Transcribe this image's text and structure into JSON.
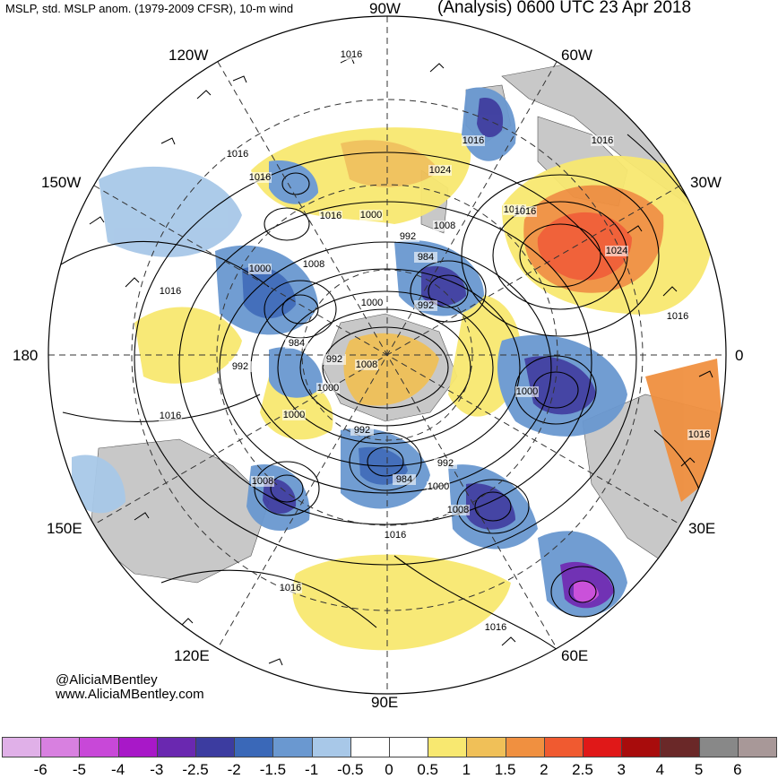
{
  "header": {
    "left_title": "MSLP, std. MSLP anom. (1979-2009 CFSR), 10-m wind",
    "right_title": "(Analysis) 0600 UTC 23 Apr 2018"
  },
  "longitude_labels": {
    "n90w": "90W",
    "n120w": "120W",
    "n60w": "60W",
    "n150w": "150W",
    "n30w": "30W",
    "n180": "180",
    "n0": "0",
    "n150e": "150E",
    "n30e": "30E",
    "n120e": "120E",
    "n60e": "60E",
    "n90e": "90E"
  },
  "credits": {
    "handle": "@AliciaMBentley",
    "website": "www.AliciaMBentley.com"
  },
  "contour_labels": [
    {
      "text": "1016"
    },
    {
      "text": "1016"
    },
    {
      "text": "1016"
    },
    {
      "text": "1016"
    },
    {
      "text": "1016"
    },
    {
      "text": "1016"
    },
    {
      "text": "1024"
    },
    {
      "text": "1016"
    },
    {
      "text": "1016"
    },
    {
      "text": "1000"
    },
    {
      "text": "1016"
    },
    {
      "text": "1008"
    },
    {
      "text": "992"
    },
    {
      "text": "1008"
    },
    {
      "text": "1024"
    },
    {
      "text": "1000"
    },
    {
      "text": "984"
    },
    {
      "text": "1016"
    },
    {
      "text": "1000"
    },
    {
      "text": "992"
    },
    {
      "text": "1016"
    },
    {
      "text": "984"
    },
    {
      "text": "992"
    },
    {
      "text": "992"
    },
    {
      "text": "1008"
    },
    {
      "text": "1000"
    },
    {
      "text": "1000"
    },
    {
      "text": "1016"
    },
    {
      "text": "1000"
    },
    {
      "text": "1016"
    },
    {
      "text": "992"
    },
    {
      "text": "992"
    },
    {
      "text": "1008"
    },
    {
      "text": "984"
    },
    {
      "text": "1000"
    },
    {
      "text": "1008"
    },
    {
      "text": "1016"
    },
    {
      "text": "1016"
    },
    {
      "text": "1016"
    }
  ],
  "colorbar": {
    "labels": [
      "-6",
      "-5",
      "-4",
      "-3",
      "-2.5",
      "-2",
      "-1.5",
      "-1",
      "-0.5",
      "0",
      "0.5",
      "1",
      "1.5",
      "2",
      "2.5",
      "3",
      "4",
      "5",
      "6"
    ],
    "colors": [
      "#e0b0e8",
      "#d880e0",
      "#c848d8",
      "#a818c8",
      "#6a28b0",
      "#3c3ca0",
      "#3a68b8",
      "#6a98d0",
      "#a8c8e8",
      "#ffffff",
      "#ffffff",
      "#f8e870",
      "#f0c058",
      "#f09040",
      "#f05a30",
      "#e01818",
      "#a80c0c",
      "#6a2828",
      "#888888",
      "#a89898"
    ]
  },
  "colors": {
    "land": "#c8c8c8",
    "contour": "#000000",
    "grid": "#333333"
  }
}
